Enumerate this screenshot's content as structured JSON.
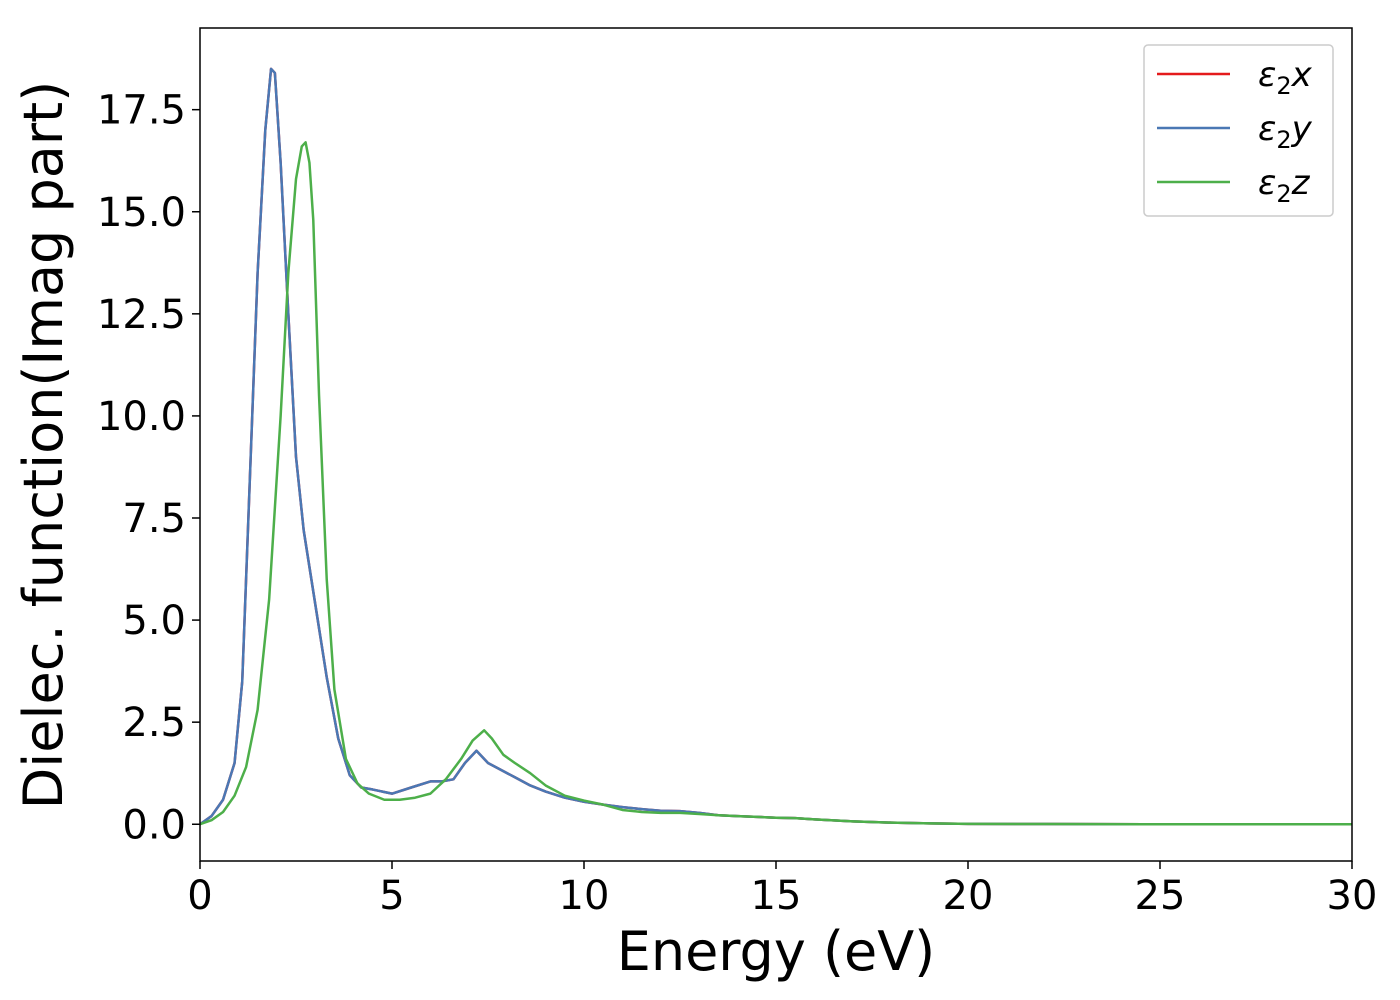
{
  "chart_data": {
    "type": "line",
    "xlabel": "Energy (eV)",
    "ylabel": "Dielec. function(Imag part)",
    "xlim": [
      0,
      30
    ],
    "ylim": [
      -0.9,
      19.5
    ],
    "xticks": [
      0,
      5,
      10,
      15,
      20,
      25,
      30
    ],
    "xtick_labels": [
      "0",
      "5",
      "10",
      "15",
      "20",
      "25",
      "30"
    ],
    "yticks": [
      0.0,
      2.5,
      5.0,
      7.5,
      10.0,
      12.5,
      15.0,
      17.5
    ],
    "ytick_labels": [
      "0.0",
      "2.5",
      "5.0",
      "7.5",
      "10.0",
      "12.5",
      "15.0",
      "17.5"
    ],
    "grid": false,
    "legend_position": "top-right",
    "series": [
      {
        "name": "ε₂x",
        "legend_base": "ε",
        "legend_sub": "2",
        "legend_var": "x",
        "color": "#e41a1c",
        "x": [
          0,
          0.3,
          0.6,
          0.9,
          1.1,
          1.3,
          1.5,
          1.7,
          1.85,
          1.95,
          2.1,
          2.3,
          2.5,
          2.7,
          2.9,
          3.1,
          3.3,
          3.6,
          3.9,
          4.2,
          4.5,
          5.0,
          5.5,
          6.0,
          6.3,
          6.6,
          6.9,
          7.2,
          7.5,
          7.8,
          8.2,
          8.6,
          9.0,
          9.5,
          10.0,
          10.5,
          11.0,
          11.5,
          12.0,
          12.5,
          13.0,
          13.5,
          14.0,
          14.5,
          15.0,
          15.5,
          16.0,
          17.0,
          18.0,
          19.0,
          20.0,
          22.0,
          25.0,
          28.0,
          30.0
        ],
        "y": [
          0.0,
          0.2,
          0.6,
          1.5,
          3.5,
          8.5,
          13.5,
          17.0,
          18.5,
          18.4,
          16.2,
          12.5,
          9.0,
          7.2,
          6.0,
          4.8,
          3.6,
          2.1,
          1.2,
          0.9,
          0.85,
          0.75,
          0.9,
          1.05,
          1.05,
          1.1,
          1.5,
          1.8,
          1.5,
          1.35,
          1.15,
          0.95,
          0.8,
          0.65,
          0.55,
          0.48,
          0.42,
          0.37,
          0.33,
          0.32,
          0.28,
          0.22,
          0.2,
          0.18,
          0.16,
          0.15,
          0.12,
          0.07,
          0.04,
          0.02,
          0.01,
          0.005,
          0.0,
          0.0,
          0.0
        ]
      },
      {
        "name": "ε₂y",
        "legend_base": "ε",
        "legend_sub": "2",
        "legend_var": "y",
        "color": "#4a78b4",
        "x": [
          0,
          0.3,
          0.6,
          0.9,
          1.1,
          1.3,
          1.5,
          1.7,
          1.85,
          1.95,
          2.1,
          2.3,
          2.5,
          2.7,
          2.9,
          3.1,
          3.3,
          3.6,
          3.9,
          4.2,
          4.5,
          5.0,
          5.5,
          6.0,
          6.3,
          6.6,
          6.9,
          7.2,
          7.5,
          7.8,
          8.2,
          8.6,
          9.0,
          9.5,
          10.0,
          10.5,
          11.0,
          11.5,
          12.0,
          12.5,
          13.0,
          13.5,
          14.0,
          14.5,
          15.0,
          15.5,
          16.0,
          17.0,
          18.0,
          19.0,
          20.0,
          22.0,
          25.0,
          28.0,
          30.0
        ],
        "y": [
          0.0,
          0.2,
          0.6,
          1.5,
          3.5,
          8.5,
          13.5,
          17.0,
          18.5,
          18.4,
          16.2,
          12.5,
          9.0,
          7.2,
          6.0,
          4.8,
          3.6,
          2.1,
          1.2,
          0.9,
          0.85,
          0.75,
          0.9,
          1.05,
          1.05,
          1.1,
          1.5,
          1.8,
          1.5,
          1.35,
          1.15,
          0.95,
          0.8,
          0.65,
          0.55,
          0.48,
          0.42,
          0.37,
          0.33,
          0.32,
          0.28,
          0.22,
          0.2,
          0.18,
          0.16,
          0.15,
          0.12,
          0.07,
          0.04,
          0.02,
          0.01,
          0.005,
          0.0,
          0.0,
          0.0
        ]
      },
      {
        "name": "ε₂z",
        "legend_base": "ε",
        "legend_sub": "2",
        "legend_var": "z",
        "color": "#4daf4a",
        "x": [
          0,
          0.3,
          0.6,
          0.9,
          1.2,
          1.5,
          1.8,
          2.1,
          2.3,
          2.5,
          2.65,
          2.75,
          2.85,
          2.95,
          3.1,
          3.3,
          3.5,
          3.8,
          4.1,
          4.4,
          4.8,
          5.2,
          5.6,
          6.0,
          6.4,
          6.8,
          7.1,
          7.4,
          7.6,
          7.9,
          8.2,
          8.6,
          9.0,
          9.5,
          10.0,
          10.5,
          11.0,
          11.5,
          12.0,
          12.5,
          13.0,
          13.5,
          14.0,
          14.5,
          15.0,
          15.5,
          16.0,
          17.0,
          18.0,
          19.0,
          20.0,
          22.0,
          25.0,
          28.0,
          30.0
        ],
        "y": [
          0.0,
          0.1,
          0.3,
          0.7,
          1.4,
          2.8,
          5.5,
          10.0,
          13.5,
          15.8,
          16.6,
          16.7,
          16.2,
          14.8,
          10.5,
          6.0,
          3.3,
          1.6,
          1.0,
          0.75,
          0.6,
          0.6,
          0.65,
          0.75,
          1.1,
          1.6,
          2.05,
          2.3,
          2.1,
          1.7,
          1.5,
          1.25,
          0.95,
          0.7,
          0.58,
          0.48,
          0.35,
          0.3,
          0.28,
          0.28,
          0.25,
          0.22,
          0.2,
          0.18,
          0.16,
          0.15,
          0.12,
          0.07,
          0.04,
          0.02,
          0.01,
          0.005,
          0.0,
          0.0,
          0.0
        ]
      }
    ]
  }
}
